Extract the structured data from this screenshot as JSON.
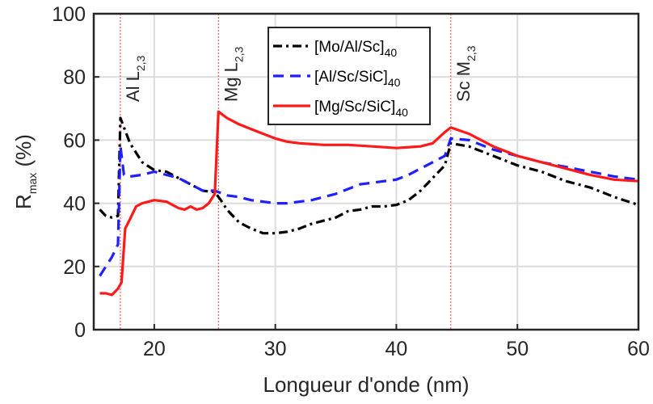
{
  "chart_data": {
    "type": "line",
    "xlabel": "Longueur d'onde (nm)",
    "ylabel": {
      "main": "R",
      "sub": "max",
      "unit": " (%)"
    },
    "xlim": [
      15,
      60
    ],
    "ylim": [
      0,
      100
    ],
    "xticks": [
      20,
      30,
      40,
      50,
      60
    ],
    "yticks": [
      0,
      20,
      40,
      60,
      80,
      100
    ],
    "grid": true,
    "legend_position": "top-center",
    "series": [
      {
        "name": "[Mo/Al/Sc]",
        "name_sub": "40",
        "color": "#000000",
        "dash": "dash-dot",
        "points": [
          [
            15.5,
            38
          ],
          [
            16,
            36
          ],
          [
            16.5,
            35.5
          ],
          [
            17,
            36
          ],
          [
            17.2,
            67
          ],
          [
            17.5,
            64
          ],
          [
            18,
            59
          ],
          [
            19,
            53
          ],
          [
            20,
            50.5
          ],
          [
            21,
            50
          ],
          [
            22,
            48
          ],
          [
            23,
            46
          ],
          [
            24,
            44
          ],
          [
            25,
            43.5
          ],
          [
            25.5,
            41
          ],
          [
            26,
            38
          ],
          [
            27,
            34
          ],
          [
            28,
            32
          ],
          [
            29,
            30.5
          ],
          [
            30,
            30.5
          ],
          [
            31,
            31
          ],
          [
            32,
            32
          ],
          [
            33,
            33.5
          ],
          [
            34,
            34.5
          ],
          [
            35,
            35.5
          ],
          [
            36,
            37.5
          ],
          [
            37,
            38
          ],
          [
            38,
            39
          ],
          [
            39,
            39
          ],
          [
            40,
            39.5
          ],
          [
            41,
            41
          ],
          [
            42,
            44
          ],
          [
            43,
            48
          ],
          [
            44,
            52
          ],
          [
            44.5,
            59
          ],
          [
            46,
            58
          ],
          [
            48,
            55
          ],
          [
            50,
            52
          ],
          [
            52,
            50
          ],
          [
            54,
            47
          ],
          [
            56,
            45
          ],
          [
            58,
            42
          ],
          [
            60,
            39.5
          ]
        ]
      },
      {
        "name": "[Al/Sc/SiC]",
        "name_sub": "40",
        "color": "#1f1fff",
        "dash": "dashed",
        "points": [
          [
            15.5,
            17
          ],
          [
            16,
            20
          ],
          [
            16.5,
            23
          ],
          [
            17,
            27
          ],
          [
            17.2,
            58
          ],
          [
            17.5,
            49
          ],
          [
            18,
            48.5
          ],
          [
            19,
            49
          ],
          [
            20,
            50
          ],
          [
            21,
            49
          ],
          [
            22,
            48
          ],
          [
            23,
            46
          ],
          [
            24,
            44
          ],
          [
            25,
            44
          ],
          [
            26,
            42.5
          ],
          [
            27,
            42
          ],
          [
            28,
            41
          ],
          [
            29,
            40.5
          ],
          [
            30,
            40
          ],
          [
            31,
            40
          ],
          [
            32,
            40.5
          ],
          [
            33,
            41
          ],
          [
            34,
            42
          ],
          [
            35,
            43
          ],
          [
            36,
            44.5
          ],
          [
            37,
            46
          ],
          [
            38,
            46.5
          ],
          [
            39,
            47
          ],
          [
            40,
            47.5
          ],
          [
            41,
            49
          ],
          [
            42,
            51
          ],
          [
            43,
            53
          ],
          [
            44,
            55
          ],
          [
            44.5,
            60.5
          ],
          [
            46,
            60
          ],
          [
            48,
            57
          ],
          [
            50,
            55
          ],
          [
            52,
            53
          ],
          [
            54,
            51.5
          ],
          [
            56,
            50
          ],
          [
            58,
            48.5
          ],
          [
            60,
            47.5
          ]
        ]
      },
      {
        "name": "[Mg/Sc/SiC]",
        "name_sub": "40",
        "color": "#ff1a1a",
        "dash": "solid",
        "points": [
          [
            15.5,
            11.5
          ],
          [
            16,
            11.5
          ],
          [
            16.5,
            11
          ],
          [
            17,
            13
          ],
          [
            17.3,
            15
          ],
          [
            17.6,
            32
          ],
          [
            18,
            35
          ],
          [
            18.5,
            39
          ],
          [
            19,
            40
          ],
          [
            20,
            41
          ],
          [
            21,
            40.5
          ],
          [
            22,
            38.5
          ],
          [
            22.5,
            38
          ],
          [
            23,
            39
          ],
          [
            23.5,
            38
          ],
          [
            24,
            38.5
          ],
          [
            24.5,
            40
          ],
          [
            25,
            43
          ],
          [
            25.3,
            69
          ],
          [
            26,
            67
          ],
          [
            27,
            65
          ],
          [
            28,
            63.5
          ],
          [
            29,
            62
          ],
          [
            30,
            60.5
          ],
          [
            31,
            59.5
          ],
          [
            32,
            59
          ],
          [
            34,
            58.5
          ],
          [
            36,
            58.5
          ],
          [
            38,
            58
          ],
          [
            40,
            57.5
          ],
          [
            42,
            58
          ],
          [
            43,
            59
          ],
          [
            44,
            62.5
          ],
          [
            44.5,
            64
          ],
          [
            46,
            62
          ],
          [
            48,
            58
          ],
          [
            50,
            55
          ],
          [
            52,
            53
          ],
          [
            54,
            51
          ],
          [
            56,
            49
          ],
          [
            58,
            47.5
          ],
          [
            60,
            47
          ]
        ]
      }
    ],
    "absorption_edges": [
      {
        "label_main": "Al L",
        "label_sub": "2,3",
        "x": 17.2
      },
      {
        "label_main": "Mg L",
        "label_sub": "2,3",
        "x": 25.3
      },
      {
        "label_main": "Sc M",
        "label_sub": "2,3",
        "x": 44.5
      }
    ],
    "edge_line_color": "#ff3333"
  }
}
